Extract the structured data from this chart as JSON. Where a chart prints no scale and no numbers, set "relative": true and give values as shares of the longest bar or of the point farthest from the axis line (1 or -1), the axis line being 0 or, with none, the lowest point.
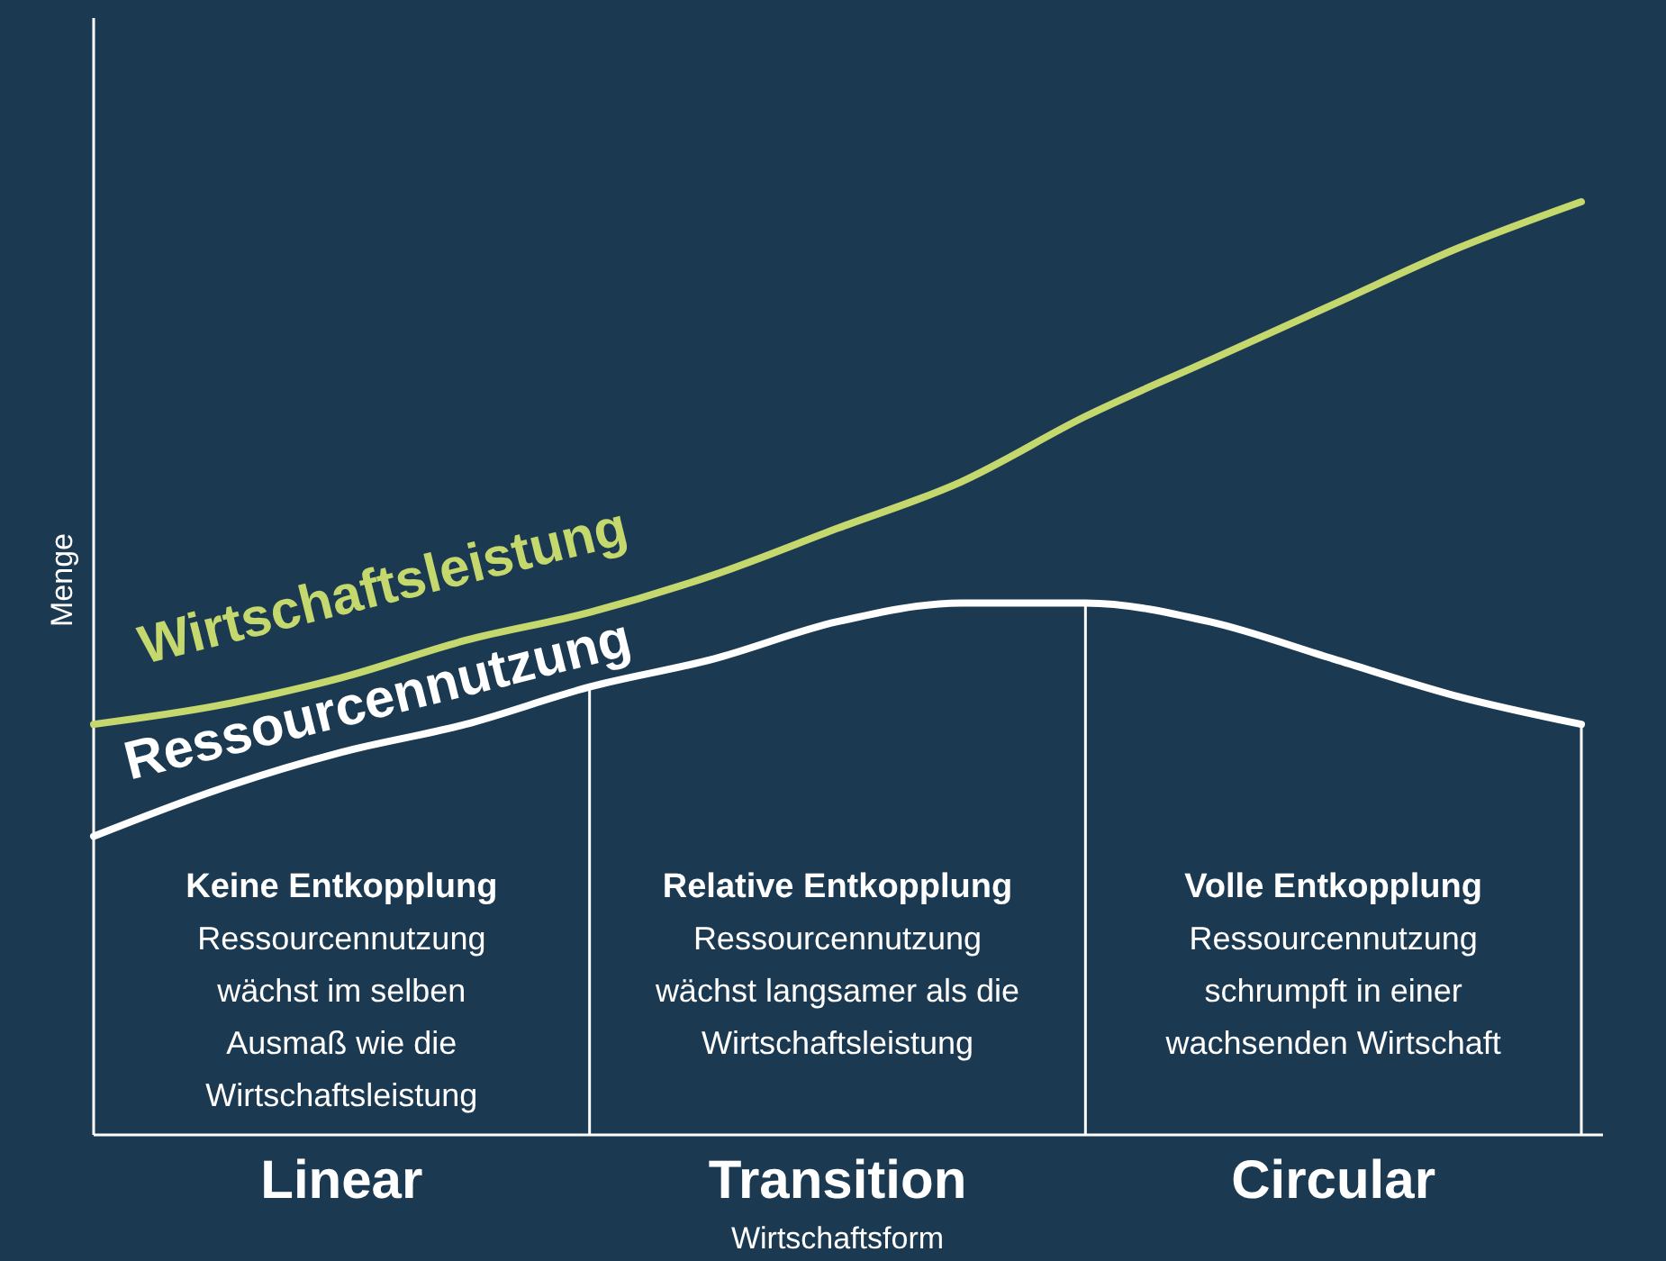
{
  "chart_data": {
    "type": "line",
    "relative": true,
    "xlabel": "Wirtschaftsform",
    "ylabel": "Menge",
    "categories": [
      null,
      null,
      "Linear",
      null,
      null,
      null,
      "Transition",
      null,
      null,
      null,
      "Circular",
      null,
      null
    ],
    "series": [
      {
        "name": "Wirtschaftsleistung",
        "color": "#c5d86d",
        "values": [
          0.44,
          0.46,
          0.49,
          0.53,
          0.56,
          0.6,
          0.65,
          0.7,
          0.77,
          0.83,
          0.89,
          0.95,
          1
        ]
      },
      {
        "name": "Ressourcennutzung",
        "color": "#ffffff",
        "values": [
          0.32,
          0.37,
          0.41,
          0.44,
          0.48,
          0.51,
          0.55,
          0.57,
          0.57,
          0.55,
          0.51,
          0.47,
          0.44
        ]
      }
    ],
    "annotations": [
      "Keine Entkopplung",
      "Ressourcennutzung\nwächst im selben\nAusmaß wie die\nWirtschaftsleistung",
      "Relative Entkopplung",
      "Ressourcennutzung\nwächst langsamer als die\nWirtschaftsleistung",
      "Volle Entkopplung",
      "Ressourcennutzung\nschrumpft in einer\nwachsenden Wirtschaft"
    ]
  }
}
